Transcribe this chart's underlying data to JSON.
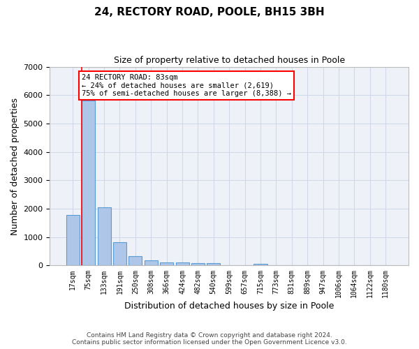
{
  "title1": "24, RECTORY ROAD, POOLE, BH15 3BH",
  "title2": "Size of property relative to detached houses in Poole",
  "xlabel": "Distribution of detached houses by size in Poole",
  "ylabel": "Number of detached properties",
  "bar_labels": [
    "17sqm",
    "75sqm",
    "133sqm",
    "191sqm",
    "250sqm",
    "308sqm",
    "366sqm",
    "424sqm",
    "482sqm",
    "540sqm",
    "599sqm",
    "657sqm",
    "715sqm",
    "773sqm",
    "831sqm",
    "889sqm",
    "947sqm",
    "1006sqm",
    "1064sqm",
    "1122sqm",
    "1180sqm"
  ],
  "bar_values": [
    1780,
    5800,
    2060,
    820,
    340,
    185,
    115,
    100,
    95,
    75,
    0,
    0,
    70,
    0,
    0,
    0,
    0,
    0,
    0,
    0,
    0
  ],
  "bar_color": "#aec6e8",
  "bar_edge_color": "#5b9bd5",
  "grid_color": "#d0d8e8",
  "bg_color": "#eef2f8",
  "vline_x": 0.56,
  "vline_color": "red",
  "annotation_text": "24 RECTORY ROAD: 83sqm\n← 24% of detached houses are smaller (2,619)\n75% of semi-detached houses are larger (8,388) →",
  "annotation_box_color": "red",
  "ylim": [
    0,
    7000
  ],
  "yticks": [
    0,
    1000,
    2000,
    3000,
    4000,
    5000,
    6000,
    7000
  ],
  "footer1": "Contains HM Land Registry data © Crown copyright and database right 2024.",
  "footer2": "Contains public sector information licensed under the Open Government Licence v3.0."
}
